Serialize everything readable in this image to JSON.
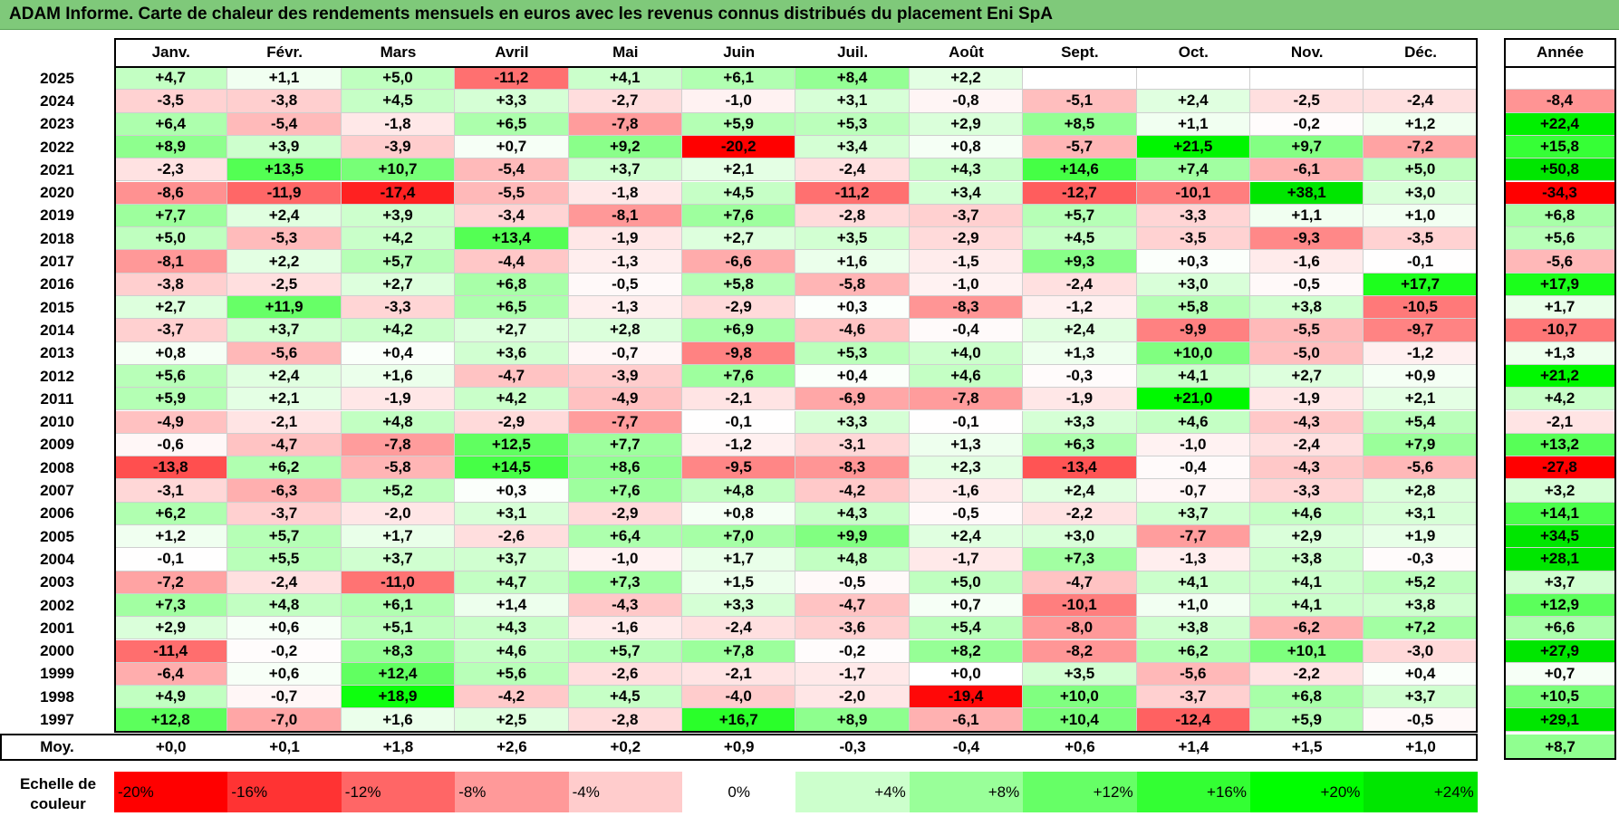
{
  "title": "ADAM Informe. Carte de chaleur des rendements mensuels en euros avec les revenus connus distribués du placement Eni SpA",
  "chart_data": {
    "type": "heatmap",
    "title": "ADAM Informe. Carte de chaleur des rendements mensuels en euros avec les revenus connus distribués du placement Eni SpA",
    "columns": [
      "Janv.",
      "Févr.",
      "Mars",
      "Avril",
      "Mai",
      "Juin",
      "Juil.",
      "Août",
      "Sept.",
      "Oct.",
      "Nov.",
      "Déc."
    ],
    "year_header": "Année",
    "rows": [
      {
        "year": "2025",
        "values": [
          4.7,
          1.1,
          5.0,
          -11.2,
          4.1,
          6.1,
          8.4,
          2.2,
          null,
          null,
          null,
          null
        ],
        "annual": null
      },
      {
        "year": "2024",
        "values": [
          -3.5,
          -3.8,
          4.5,
          3.3,
          -2.7,
          -1.0,
          3.1,
          -0.8,
          -5.1,
          2.4,
          -2.5,
          -2.4
        ],
        "annual": -8.4
      },
      {
        "year": "2023",
        "values": [
          6.4,
          -5.4,
          -1.8,
          6.5,
          -7.8,
          5.9,
          5.3,
          2.9,
          8.5,
          1.1,
          -0.2,
          1.2
        ],
        "annual": 22.4
      },
      {
        "year": "2022",
        "values": [
          8.9,
          3.9,
          -3.9,
          0.7,
          9.2,
          -20.2,
          3.4,
          0.8,
          -5.7,
          21.5,
          9.7,
          -7.2
        ],
        "annual": 15.8
      },
      {
        "year": "2021",
        "values": [
          -2.3,
          13.5,
          10.7,
          -5.4,
          3.7,
          2.1,
          -2.4,
          4.3,
          14.6,
          7.4,
          -6.1,
          5.0
        ],
        "annual": 50.8
      },
      {
        "year": "2020",
        "values": [
          -8.6,
          -11.9,
          -17.4,
          -5.5,
          -1.8,
          4.5,
          -11.2,
          3.4,
          -12.7,
          -10.1,
          38.1,
          3.0
        ],
        "annual": -34.3
      },
      {
        "year": "2019",
        "values": [
          7.7,
          2.4,
          3.9,
          -3.4,
          -8.1,
          7.6,
          -2.8,
          -3.7,
          5.7,
          -3.3,
          1.1,
          1.0
        ],
        "annual": 6.8
      },
      {
        "year": "2018",
        "values": [
          5.0,
          -5.3,
          4.2,
          13.4,
          -1.9,
          2.7,
          3.5,
          -2.9,
          4.5,
          -3.5,
          -9.3,
          -3.5
        ],
        "annual": 5.6
      },
      {
        "year": "2017",
        "values": [
          -8.1,
          2.2,
          5.7,
          -4.4,
          -1.3,
          -6.6,
          1.6,
          -1.5,
          9.3,
          0.3,
          -1.6,
          -0.1
        ],
        "annual": -5.6
      },
      {
        "year": "2016",
        "values": [
          -3.8,
          -2.5,
          2.7,
          6.8,
          -0.5,
          5.8,
          -5.8,
          -1.0,
          -2.4,
          3.0,
          -0.5,
          17.7
        ],
        "annual": 17.9
      },
      {
        "year": "2015",
        "values": [
          2.7,
          11.9,
          -3.3,
          6.5,
          -1.3,
          -2.9,
          0.3,
          -8.3,
          -1.2,
          5.8,
          3.8,
          -10.5
        ],
        "annual": 1.7
      },
      {
        "year": "2014",
        "values": [
          -3.7,
          3.7,
          4.2,
          2.7,
          2.8,
          6.9,
          -4.6,
          -0.4,
          2.4,
          -9.9,
          -5.5,
          -9.7
        ],
        "annual": -10.7
      },
      {
        "year": "2013",
        "values": [
          0.8,
          -5.6,
          0.4,
          3.6,
          -0.7,
          -9.8,
          5.3,
          4.0,
          1.3,
          10.0,
          -5.0,
          -1.2
        ],
        "annual": 1.3
      },
      {
        "year": "2012",
        "values": [
          5.6,
          2.4,
          1.6,
          -4.7,
          -3.9,
          7.6,
          0.4,
          4.6,
          -0.3,
          4.1,
          2.7,
          0.9
        ],
        "annual": 21.2
      },
      {
        "year": "2011",
        "values": [
          5.9,
          2.1,
          -1.9,
          4.2,
          -4.9,
          -2.1,
          -6.9,
          -7.8,
          -1.9,
          21.0,
          -1.9,
          2.1
        ],
        "annual": 4.2
      },
      {
        "year": "2010",
        "values": [
          -4.9,
          -2.1,
          4.8,
          -2.9,
          -7.7,
          -0.1,
          3.3,
          -0.1,
          3.3,
          4.6,
          -4.3,
          5.4
        ],
        "annual": -2.1
      },
      {
        "year": "2009",
        "values": [
          -0.6,
          -4.7,
          -7.8,
          12.5,
          7.7,
          -1.2,
          -3.1,
          1.3,
          6.3,
          -1.0,
          -2.4,
          7.9
        ],
        "annual": 13.2
      },
      {
        "year": "2008",
        "values": [
          -13.8,
          6.2,
          -5.8,
          14.5,
          8.6,
          -9.5,
          -8.3,
          2.3,
          -13.4,
          -0.4,
          -4.3,
          -5.6
        ],
        "annual": -27.8
      },
      {
        "year": "2007",
        "values": [
          -3.1,
          -6.3,
          5.2,
          0.3,
          7.6,
          4.8,
          -4.2,
          -1.6,
          2.4,
          -0.7,
          -3.3,
          2.8
        ],
        "annual": 3.2
      },
      {
        "year": "2006",
        "values": [
          6.2,
          -3.7,
          -2.0,
          3.1,
          -2.9,
          0.8,
          4.3,
          -0.5,
          -2.2,
          3.7,
          4.6,
          3.1
        ],
        "annual": 14.1
      },
      {
        "year": "2005",
        "values": [
          1.2,
          5.7,
          1.7,
          -2.6,
          6.4,
          7.0,
          9.9,
          2.4,
          3.0,
          -7.7,
          2.9,
          1.9
        ],
        "annual": 34.5
      },
      {
        "year": "2004",
        "values": [
          -0.1,
          5.5,
          3.7,
          3.7,
          -1.0,
          1.7,
          4.8,
          -1.7,
          7.3,
          -1.3,
          3.8,
          -0.3
        ],
        "annual": 28.1
      },
      {
        "year": "2003",
        "values": [
          -7.2,
          -2.4,
          -11.0,
          4.7,
          7.3,
          1.5,
          -0.5,
          5.0,
          -4.7,
          4.1,
          4.1,
          5.2
        ],
        "annual": 3.7
      },
      {
        "year": "2002",
        "values": [
          7.3,
          4.8,
          6.1,
          1.4,
          -4.3,
          3.3,
          -4.7,
          0.7,
          -10.1,
          1.0,
          4.1,
          3.8
        ],
        "annual": 12.9
      },
      {
        "year": "2001",
        "values": [
          2.9,
          0.6,
          5.1,
          4.3,
          -1.6,
          -2.4,
          -3.6,
          5.4,
          -8.0,
          3.8,
          -6.2,
          7.2
        ],
        "annual": 6.6
      },
      {
        "year": "2000",
        "values": [
          -11.4,
          -0.2,
          8.3,
          4.6,
          5.7,
          7.8,
          -0.2,
          8.2,
          -8.2,
          6.2,
          10.1,
          -3.0
        ],
        "annual": 27.9
      },
      {
        "year": "1999",
        "values": [
          -6.4,
          0.6,
          12.4,
          5.6,
          -2.6,
          -2.1,
          -1.7,
          0.0,
          3.5,
          -5.6,
          -2.2,
          0.4
        ],
        "annual": 0.7
      },
      {
        "year": "1998",
        "values": [
          4.9,
          -0.7,
          18.9,
          -4.2,
          4.5,
          -4.0,
          -2.0,
          -19.4,
          10.0,
          -3.7,
          6.8,
          3.7
        ],
        "annual": 10.5
      },
      {
        "year": "1997",
        "values": [
          12.8,
          -7.0,
          1.6,
          2.5,
          -2.8,
          16.7,
          8.9,
          -6.1,
          10.4,
          -12.4,
          5.9,
          -0.5
        ],
        "annual": 29.1
      }
    ],
    "average": {
      "label": "Moy.",
      "values": [
        0.0,
        0.1,
        1.8,
        2.6,
        0.2,
        0.9,
        -0.3,
        -0.4,
        0.6,
        1.4,
        1.5,
        1.0
      ],
      "annual": 8.7
    },
    "color_scale": {
      "label": "Echelle de\ncouleur",
      "stops": [
        {
          "label": "-20%",
          "value": -20,
          "color": "#ff0000"
        },
        {
          "label": "-16%",
          "value": -16,
          "color": "#ff3333"
        },
        {
          "label": "-12%",
          "value": -12,
          "color": "#ff6666"
        },
        {
          "label": "-8%",
          "value": -8,
          "color": "#ff9999"
        },
        {
          "label": "-4%",
          "value": -4,
          "color": "#ffcccc"
        },
        {
          "label": "0%",
          "value": 0,
          "color": "#ffffff"
        },
        {
          "label": "+4%",
          "value": 4,
          "color": "#ccffcc"
        },
        {
          "label": "+8%",
          "value": 8,
          "color": "#99ff99"
        },
        {
          "label": "+12%",
          "value": 12,
          "color": "#66ff66"
        },
        {
          "label": "+16%",
          "value": 16,
          "color": "#33ff33"
        },
        {
          "label": "+20%",
          "value": 20,
          "color": "#00ff00"
        },
        {
          "label": "+24%",
          "value": 24,
          "color": "#00e600"
        }
      ]
    }
  }
}
